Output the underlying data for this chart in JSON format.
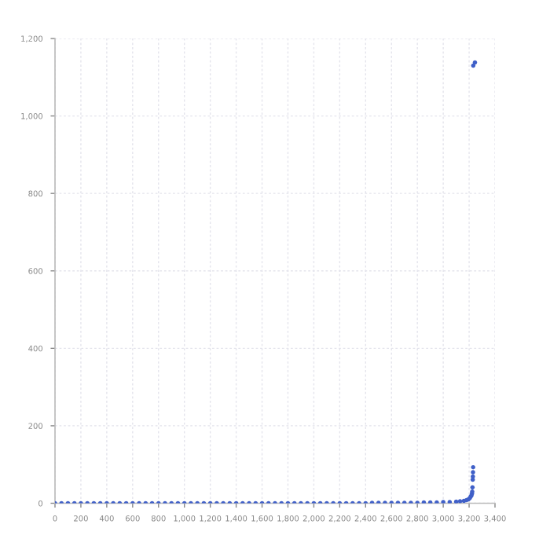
{
  "chart_data": {
    "type": "scatter",
    "xlim": [
      0,
      3400
    ],
    "ylim": [
      0,
      1200
    ],
    "xticks": [
      0,
      {
        "value": 200,
        "label": "200"
      },
      {
        "value": 400,
        "label": "400"
      },
      {
        "value": 600,
        "label": "600"
      },
      {
        "value": 800,
        "label": "800"
      },
      {
        "value": 1000,
        "label": "1,000"
      },
      {
        "value": 1200,
        "label": "1,200"
      },
      {
        "value": 1400,
        "label": "1,400"
      },
      {
        "value": 1600,
        "label": "1,600"
      },
      {
        "value": 1800,
        "label": "1,800"
      },
      {
        "value": 2000,
        "label": "2,000"
      },
      {
        "value": 2200,
        "label": "2,200"
      },
      {
        "value": 2400,
        "label": "2,400"
      },
      {
        "value": 2600,
        "label": "2,600"
      },
      {
        "value": 2800,
        "label": "2,800"
      },
      {
        "value": 3000,
        "label": "3,000"
      },
      {
        "value": 3200,
        "label": "3,200"
      },
      {
        "value": 3400,
        "label": "3,400"
      }
    ],
    "yticks": [
      0,
      200,
      400,
      600,
      800,
      {
        "value": 1000,
        "label": "1,000"
      },
      {
        "value": 1200,
        "label": "1,200"
      }
    ],
    "grid": true,
    "marker": "circle",
    "series": [
      {
        "color": "#4060c8",
        "x": [
          0,
          50,
          100,
          150,
          200,
          250,
          300,
          350,
          400,
          450,
          500,
          550,
          600,
          650,
          700,
          750,
          800,
          850,
          900,
          950,
          1000,
          1050,
          1100,
          1150,
          1200,
          1250,
          1300,
          1350,
          1400,
          1450,
          1500,
          1550,
          1600,
          1650,
          1700,
          1750,
          1800,
          1850,
          1900,
          1950,
          2000,
          2050,
          2100,
          2150,
          2200,
          2250,
          2300,
          2350,
          2400,
          2450,
          2500,
          2550,
          2600,
          2650,
          2700,
          2750,
          2800,
          2850,
          2900,
          2950,
          3000,
          3050,
          3100,
          3130,
          3160,
          3180,
          3195,
          3205,
          3212,
          3218,
          3222,
          3224,
          3226,
          3228,
          3229,
          3230,
          3231,
          3232
        ],
        "values": [
          0,
          0,
          0,
          0,
          0,
          0,
          0,
          0,
          0,
          0,
          0,
          0,
          0,
          0,
          0,
          0,
          0,
          0,
          0,
          0,
          0,
          0,
          0,
          0,
          0,
          0,
          0,
          0,
          0,
          0,
          0,
          0,
          0,
          0,
          0,
          0,
          0,
          0,
          0,
          0,
          0,
          0,
          0,
          0,
          0,
          0,
          0,
          0,
          0,
          1,
          1,
          1,
          1,
          1,
          1,
          1,
          1,
          2,
          2,
          2,
          3,
          3,
          4,
          5,
          6,
          8,
          10,
          13,
          17,
          20,
          25,
          30,
          41,
          61,
          69,
          80,
          93,
          1130
        ]
      },
      {
        "color": "#4060c8",
        "x": [
          3245
        ],
        "values": [
          1138
        ]
      }
    ]
  }
}
